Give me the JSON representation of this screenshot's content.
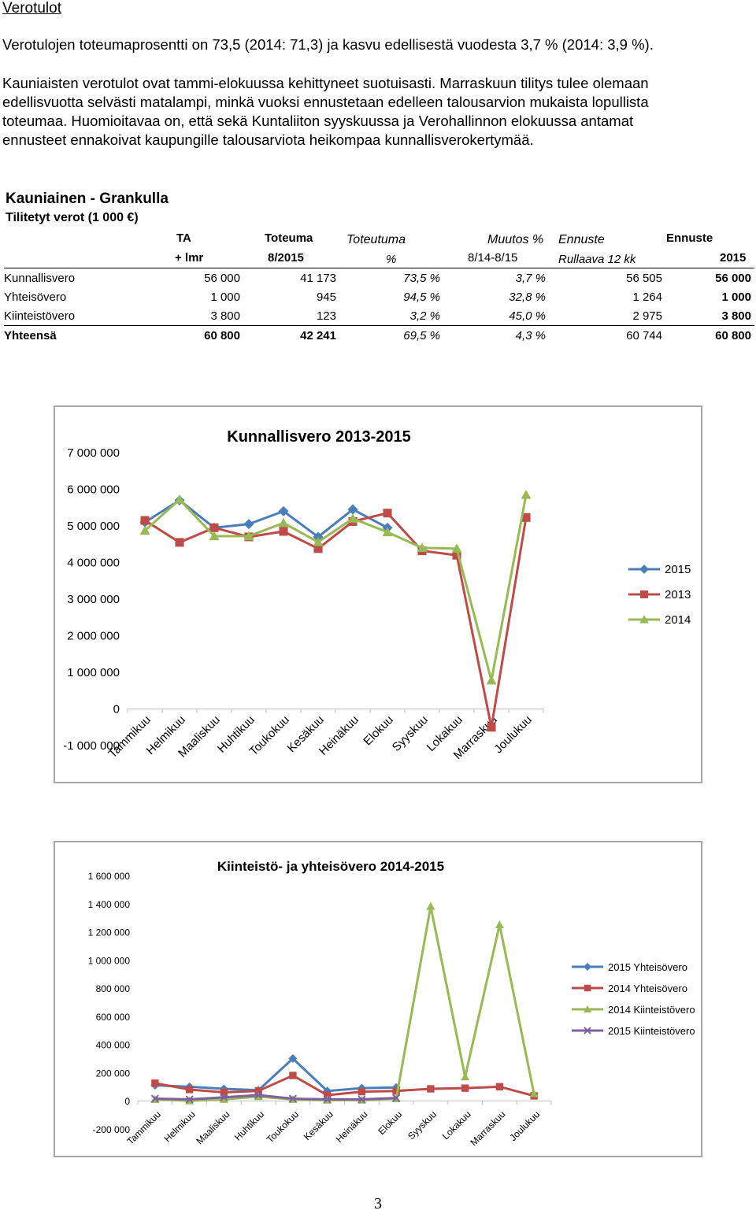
{
  "heading": "Verotulot",
  "para1": "Verotulojen toteumaprosentti on 73,5 (2014: 71,3) ja kasvu edellisestä vuodesta 3,7 % (2014: 3,9 %).",
  "para2_lines": [
    "Kauniaisten verotulot ovat tammi-elokuussa kehittyneet suotuisasti. Marraskuun tilitys tulee olemaan",
    "edellisvuotta selvästi matalampi, minkä vuoksi ennustetaan edelleen talousarvion mukaista lopullista",
    "toteumaa. Huomioitavaa on, että sekä Kuntaliiton syyskuussa ja Verohallinnon elokuussa antamat",
    "ennusteet ennakoivat kaupungille talousarviota heikompaa kunnallisverokertymää."
  ],
  "table": {
    "title": "Kauniainen - Grankulla",
    "subtitle": "Tilitetyt verot (1 000 €)",
    "header1": [
      "TA",
      "Toteuma",
      "Toteutuma",
      "Muutos %",
      "Ennuste",
      "Ennuste"
    ],
    "header2": [
      "+ lmr",
      "8/2015",
      "%",
      "8/14-8/15",
      "Rullaava 12 kk",
      "2015"
    ],
    "rows": [
      {
        "label": "Kunnallisvero",
        "ta": "56 000",
        "toteuma": "41 173",
        "toteutuma": "73,5 %",
        "muutos": "3,7 %",
        "rullaava": "56 505",
        "ennuste": "56 000"
      },
      {
        "label": "Yhteisövero",
        "ta": "1 000",
        "toteuma": "945",
        "toteutuma": "94,5 %",
        "muutos": "32,8 %",
        "rullaava": "1 264",
        "ennuste": "1 000"
      },
      {
        "label": "Kiinteistövero",
        "ta": "3 800",
        "toteuma": "123",
        "toteutuma": "3,2 %",
        "muutos": "45,0 %",
        "rullaava": "2 975",
        "ennuste": "3 800"
      },
      {
        "label": "Yhteensä",
        "ta": "60 800",
        "toteuma": "42 241",
        "toteutuma": "69,5 %",
        "muutos": "4,3 %",
        "rullaava": "60 744",
        "ennuste": "60 800"
      }
    ]
  },
  "chart_data": [
    {
      "type": "line",
      "title": "Kunnallisvero 2013-2015",
      "categories": [
        "Tammikuu",
        "Helmikuu",
        "Maaliskuu",
        "Huhtikuu",
        "Toukokuu",
        "Kesäkuu",
        "Heinäkuu",
        "Elokuu",
        "Syyskuu",
        "Lokakuu",
        "Marraskuu",
        "Joulukuu"
      ],
      "ylim": [
        -1000000,
        7000000
      ],
      "ytick_labels": [
        "7 000 000",
        "6 000 000",
        "5 000 000",
        "4 000 000",
        "3 000 000",
        "2 000 000",
        "1 000 000",
        "0",
        "-1 000 000"
      ],
      "ytick_values": [
        7000000,
        6000000,
        5000000,
        4000000,
        3000000,
        2000000,
        1000000,
        0,
        -1000000
      ],
      "legend_position": "right",
      "series": [
        {
          "name": "2015",
          "color": "#4a7ebb",
          "marker": "diamond",
          "values": [
            5100000,
            5700000,
            4950000,
            5050000,
            5400000,
            4700000,
            5450000,
            4950000,
            null,
            null,
            null,
            null
          ]
        },
        {
          "name": "2013",
          "color": "#be4b48",
          "marker": "square",
          "values": [
            5150000,
            4550000,
            4950000,
            4700000,
            4850000,
            4380000,
            5120000,
            5350000,
            4320000,
            4200000,
            -500000,
            5230000
          ]
        },
        {
          "name": "2014",
          "color": "#98b954",
          "marker": "triangle",
          "values": [
            4870000,
            5720000,
            4720000,
            4720000,
            5080000,
            4560000,
            5200000,
            4830000,
            4400000,
            4380000,
            780000,
            5850000
          ]
        }
      ]
    },
    {
      "type": "line",
      "title": "Kiinteistö- ja yhteisövero 2014-2015",
      "categories": [
        "Tammikuu",
        "Helmikuu",
        "Maaliskuu",
        "Huhtikuu",
        "Toukokuu",
        "Kesäkuu",
        "Heinäkuu",
        "Elokuu",
        "Syyskuu",
        "Lokakuu",
        "Marraskuu",
        "Joulukuu"
      ],
      "ylim": [
        -200000,
        1600000
      ],
      "ytick_labels": [
        "1 600 000",
        "1 400 000",
        "1 200 000",
        "1 000 000",
        "800 000",
        "600 000",
        "400 000",
        "200 000",
        "0",
        "-200 000"
      ],
      "ytick_values": [
        1600000,
        1400000,
        1200000,
        1000000,
        800000,
        600000,
        400000,
        200000,
        0,
        -200000
      ],
      "legend_position": "right",
      "series": [
        {
          "name": "2015 Yhteisövero",
          "color": "#4a7ebb",
          "marker": "diamond",
          "values": [
            110000,
            100000,
            85000,
            75000,
            300000,
            70000,
            90000,
            95000,
            null,
            null,
            null,
            null
          ]
        },
        {
          "name": "2014 Yhteisövero",
          "color": "#be4b48",
          "marker": "square",
          "values": [
            125000,
            80000,
            60000,
            70000,
            180000,
            40000,
            65000,
            70000,
            85000,
            90000,
            100000,
            35000
          ]
        },
        {
          "name": "2014 Kiinteistövero",
          "color": "#98b954",
          "marker": "triangle",
          "values": [
            10000,
            0,
            10000,
            30000,
            10000,
            5000,
            5000,
            15000,
            1380000,
            170000,
            1250000,
            50000
          ]
        },
        {
          "name": "2015 Kiinteistövero",
          "color": "#7d60a0",
          "marker": "x",
          "values": [
            15000,
            10000,
            25000,
            40000,
            15000,
            10000,
            10000,
            20000,
            null,
            null,
            null,
            null
          ]
        }
      ]
    }
  ],
  "page_number": "3"
}
